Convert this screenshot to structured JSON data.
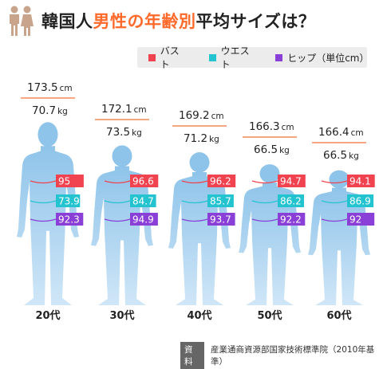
{
  "header": {
    "title_pre": "韓国人",
    "title_hl": "男性の年齢別",
    "title_post": "平均サイズは？"
  },
  "legend": {
    "items": [
      {
        "label": "バスト",
        "color": "#f0424f"
      },
      {
        "label": "ウエスト",
        "color": "#23c3cf"
      },
      {
        "label": "ヒップ（単位cm）",
        "color": "#8a3fd6"
      }
    ]
  },
  "source": {
    "badge": "資料",
    "text": "産業通商資源部国家技術標準院（2010年基準）"
  },
  "chart_data": {
    "type": "bar",
    "categories": [
      "20代",
      "30代",
      "40代",
      "50代",
      "60代"
    ],
    "height_unit": "cm",
    "weight_unit": "kg",
    "height": [
      173.5,
      172.1,
      169.2,
      166.3,
      166.4
    ],
    "weight": [
      70.7,
      73.5,
      71.2,
      66.5,
      66.5
    ],
    "series": [
      {
        "name": "バスト",
        "color": "#f0424f",
        "values": [
          95,
          96.6,
          96.2,
          94.7,
          94.1
        ]
      },
      {
        "name": "ウエスト",
        "color": "#23c3cf",
        "values": [
          73.9,
          84.7,
          85.7,
          86.2,
          86.9
        ]
      },
      {
        "name": "ヒップ",
        "color": "#8a3fd6",
        "values": [
          92.3,
          94.9,
          93.7,
          92.2,
          92
        ]
      }
    ],
    "labels": {
      "height": [
        "173.5",
        "172.1",
        "169.2",
        "166.3",
        "166.4"
      ],
      "weight": [
        "70.7",
        "73.5",
        "71.2",
        "66.5",
        "66.5"
      ],
      "series": [
        [
          "95",
          "96.6",
          "96.2",
          "94.7",
          "94.1"
        ],
        [
          "73.9",
          "84.7",
          "85.7",
          "86.2",
          "86.9"
        ],
        [
          "92.3",
          "94.9",
          "93.7",
          "92.2",
          "92"
        ]
      ]
    }
  }
}
